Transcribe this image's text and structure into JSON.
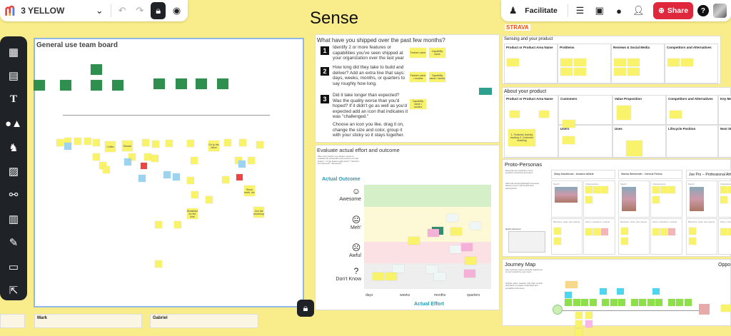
{
  "topbar_left": {
    "board_name": "3 YELLOW",
    "icons": [
      "mural-logo-icon",
      "chevron-down-icon",
      "undo-icon",
      "redo-icon",
      "lock-icon",
      "visibility-icon"
    ]
  },
  "canvas_title": "Sense",
  "topbar_right": {
    "facilitate_label": "Facilitate",
    "share_label": "Share",
    "share_color": "#e0283c",
    "icons": [
      "facilitate-icon",
      "outline-icon",
      "present-icon",
      "comment-icon",
      "user-icon",
      "share-user-icon",
      "help-icon",
      "avatar"
    ]
  },
  "brand_logo": "STRAVA",
  "toolbar": {
    "items": [
      "templates",
      "sticky-note",
      "text",
      "shapes-connectors",
      "llama-icons",
      "image",
      "diagram",
      "table",
      "draw",
      "frame",
      "import"
    ]
  },
  "team_board": {
    "title": "General use team board",
    "stickies": [
      "Coffee",
      "Shower",
      "Go to the office",
      "Breakfast for the kids",
      "Join the workshop",
      "Show, teeth, etc"
    ]
  },
  "shipped": {
    "title": "What have you shipped over the past few months?",
    "steps": [
      {
        "num": "1",
        "text": "Identify 2 or more features or capabilities you've seen shipped at your organization over the last year"
      },
      {
        "num": "2",
        "text": "How long did they take to build and deliver? Add an extra line that says: days, weeks, months, or quarters to say roughly how long."
      },
      {
        "num": "3",
        "text": "Did it take longer than expected? Was the quality worse than you'd hoped? If it didn't go as well as you'd expected add an icon that indicates it was \"challenged.\""
      }
    ],
    "note": "Choose an icon you like, drag it on, change the size and color, group it with your sticky so it stays together.",
    "stickies": [
      "Feature name",
      "Capability name",
      "Feature name • months",
      "Capability name • weeks",
      "Capability name • months"
    ]
  },
  "evaluate": {
    "title": "Evaluate actual effort and outcome",
    "intro": "After every feature you release, pause to evaluate the actual effort and outcome for that feature. * Is the feature really done? * Should it be improved? * Removed?",
    "y_label": "Actual Outcome",
    "x_label": "Actual Effort",
    "rows": [
      {
        "label": "Awesome",
        "icon": "smile-icon",
        "color": "#d5efc8"
      },
      {
        "label": "Meh'",
        "icon": "neutral-face-icon",
        "color": "#fdf8d6"
      },
      {
        "label": "Awful",
        "icon": "sad-face-icon",
        "color": "#fbe1e3"
      },
      {
        "label": "Don't Know",
        "icon": "question-icon",
        "color": "#eeeeee"
      }
    ],
    "cols": [
      "days",
      "weeks",
      "months",
      "quarters"
    ],
    "axis_color": "#2a9bb5"
  },
  "sensing": {
    "title": "Sensing and your product",
    "columns": [
      "Product or Product Area Name",
      "Problems",
      "Reviews & Social Media",
      "Competitors and Alternatives"
    ]
  },
  "about": {
    "title": "About your product",
    "cells": [
      "Product or Product Area Name",
      "Customers",
      "Value Proposition",
      "Competitors and Alternatives",
      "Key Metr",
      "Users",
      "Uses",
      "Lifecycle Position",
      "Next Str"
    ],
    "sticky_features": "1. Features: Activity tracking 2. Customer enabling"
  },
  "personas": {
    "title": "Proto-Personas",
    "intro": "Personas are examples of your product's customers and users.",
    "intro2": "Start with simple lightweight personas based on your current facts and assumptions.",
    "quick_ref": "Quick reference:",
    "names": [
      "Missy Marathoner - Amateur Athlete",
      "Wanda Weekender - General Fitness",
      "Joe Pro -- Professional Athl"
    ],
    "sections": [
      "Sketch",
      "Characteristics",
      "Behaviors, tasks, jobs (wants)",
      "Pains, motivations, rewards"
    ]
  },
  "journey": {
    "title": "Journey Map",
    "intro": "Use a journey map to describe typical use of your product by your users.",
    "intro2": "Include, pains, rewards, and other context that helps you better understand and empathize with users.",
    "opp_title": "Oppo"
  },
  "bottom_cards": [
    "Mark",
    "Gabriel"
  ]
}
